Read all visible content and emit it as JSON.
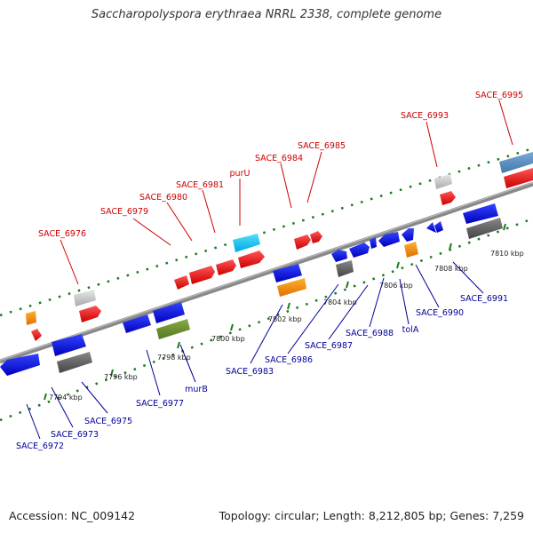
{
  "title": "Saccharopolyspora erythraea NRRL 2338, complete genome",
  "footer": {
    "accession": "Accession: NC_009142",
    "summary": "Topology: circular; Length: 8,212,805 bp; Genes: 7,259"
  },
  "colors": {
    "backbone": "#888888",
    "dotted_track": "#1a7a1a",
    "label_top": "#cc0000",
    "label_bottom": "#000099"
  },
  "ticks": [
    "7794 kbp",
    "7796 kbp",
    "7798 kbp",
    "7800 kbp",
    "7802 kbp",
    "7804 kbp",
    "7806 kbp",
    "7808 kbp",
    "7810 kbp"
  ],
  "top_labels": [
    "SACE_6976",
    "SACE_6979",
    "SACE_6980",
    "SACE_6981",
    "purU",
    "SACE_6984",
    "SACE_6985",
    "SACE_6993",
    "SACE_6995"
  ],
  "bottom_labels": [
    "SACE_6972",
    "SACE_6973",
    "SACE_6975",
    "SACE_6977",
    "murB",
    "SACE_6983",
    "SACE_6986",
    "SACE_6987",
    "SACE_6988",
    "tolA",
    "SACE_6990",
    "SACE_6991"
  ]
}
